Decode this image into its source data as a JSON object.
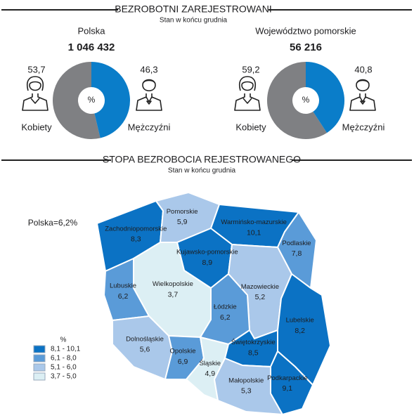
{
  "header": {
    "title": "BEZROBOTNI ZAREJESTROWANI",
    "subtitle": "Stan w końcu grudnia"
  },
  "chart_data": [
    {
      "type": "donut",
      "title": "Polska",
      "total": {
        "value": 1046432,
        "label": "1 046 432"
      },
      "center_label": "%",
      "categories": [
        "Kobiety",
        "Mężczyźni"
      ],
      "values": [
        53.7,
        46.3
      ],
      "value_labels": [
        "53,7",
        "46,3"
      ],
      "colors": [
        "#7f8083",
        "#0a7dc9"
      ]
    },
    {
      "type": "donut",
      "title": "Województwo pomorskie",
      "total": {
        "value": 56216,
        "label": "56 216"
      },
      "center_label": "%",
      "categories": [
        "Kobiety",
        "Mężczyźni"
      ],
      "values": [
        59.2,
        40.8
      ],
      "value_labels": [
        "59,2",
        "40,8"
      ],
      "colors": [
        "#7f8083",
        "#0a7dc9"
      ]
    },
    {
      "type": "choropleth",
      "title": "STOPA BEZROBOCIA REJESTROWANEGO",
      "subtitle": "Stan w końcu grudnia",
      "annotation": "Polska=6,2%",
      "categories": [
        "Zachodniopomorskie",
        "Pomorskie",
        "Warmińsko-mazurskie",
        "Podlaskie",
        "Kujawsko-pomorskie",
        "Wielkopolskie",
        "Lubuskie",
        "Mazowieckie",
        "Łódzkie",
        "Dolnośląskie",
        "Opolskie",
        "Śląskie",
        "Świętokrzyskie",
        "Lubelskie",
        "Małopolskie",
        "Podkarpackie"
      ],
      "values": [
        8.3,
        5.9,
        10.1,
        7.8,
        8.9,
        3.7,
        6.2,
        5.2,
        6.2,
        5.6,
        6.9,
        4.9,
        8.5,
        8.2,
        5.3,
        9.1
      ],
      "value_labels": [
        "8,3",
        "5,9",
        "10,1",
        "7,8",
        "8,9",
        "3,7",
        "6,2",
        "5,2",
        "6,2",
        "5,6",
        "6,9",
        "4,9",
        "8,5",
        "8,2",
        "5,3",
        "9,1"
      ],
      "legend": {
        "title": "%",
        "bins": [
          {
            "min": 8.1,
            "max": 10.1,
            "label": "8,1 - 10,1",
            "color": "#0b72c4"
          },
          {
            "min": 6.1,
            "max": 8.0,
            "label": "6,1 -  8,0",
            "color": "#5a9bd8"
          },
          {
            "min": 5.1,
            "max": 6.0,
            "label": "5,1 -  6,0",
            "color": "#aac8ea"
          },
          {
            "min": 3.7,
            "max": 5.0,
            "label": "3,7 -  5,0",
            "color": "#dceff4"
          }
        ]
      }
    }
  ]
}
